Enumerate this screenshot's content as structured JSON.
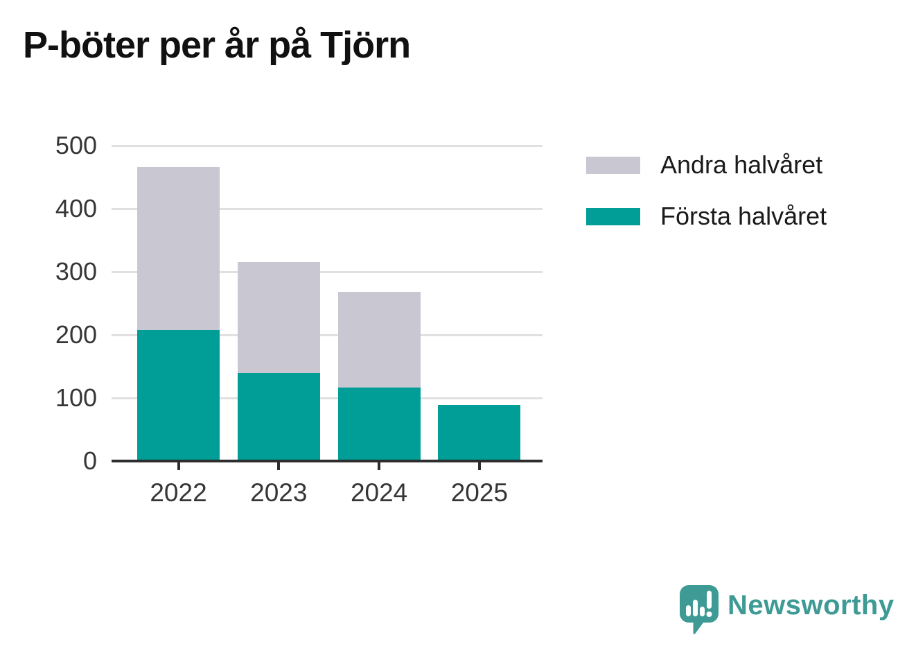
{
  "chart_data": {
    "type": "bar",
    "stacked": true,
    "title": "P-böter per år på Tjörn",
    "categories": [
      "2022",
      "2023",
      "2024",
      "2025"
    ],
    "series": [
      {
        "name": "Första halvåret",
        "color": "#009e96",
        "values": [
          208,
          140,
          116,
          89
        ]
      },
      {
        "name": "Andra halvåret",
        "color": "#c9c7d1",
        "values": [
          258,
          175,
          152,
          0
        ]
      }
    ],
    "stack_totals": [
      466,
      315,
      268,
      89
    ],
    "xlabel": "",
    "ylabel": "",
    "ylim": [
      0,
      500
    ],
    "yticks": [
      0,
      100,
      200,
      300,
      400,
      500
    ],
    "grid": "horizontal",
    "legend_position": "upper-right-outside"
  },
  "legend": {
    "items": [
      {
        "label": "Andra halvåret",
        "color": "#c9c7d1"
      },
      {
        "label": "Första halvåret",
        "color": "#009e96"
      }
    ]
  },
  "footer": {
    "brand": "Newsworthy",
    "logo_icon": "speech-bubble-bar-chart-exclamation-icon"
  },
  "colors": {
    "background": "#ffffff",
    "axis": "#2e2e2e",
    "gridline": "#e0e0e0",
    "tick_label": "#363636",
    "title": "#111111",
    "brand": "#3e9a94"
  }
}
